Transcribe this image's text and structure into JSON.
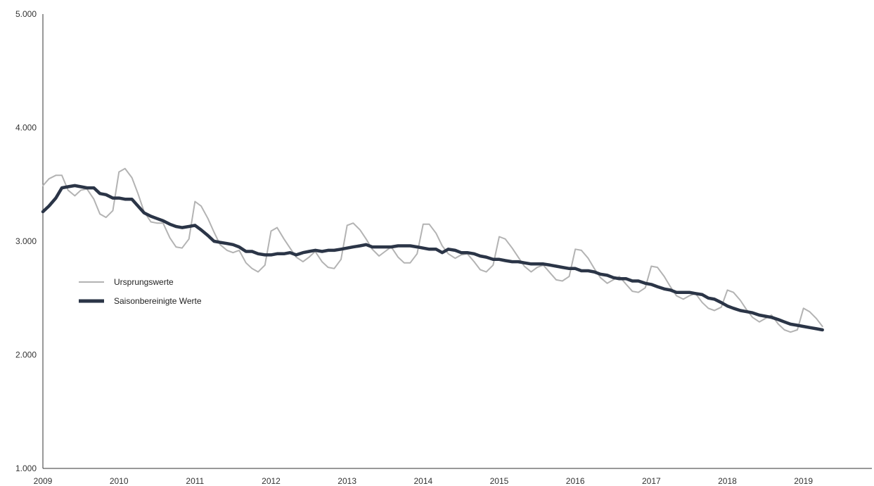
{
  "chart_data": {
    "type": "line",
    "title": "",
    "xlabel": "",
    "ylabel": "",
    "xlim": [
      2009,
      2019.9
    ],
    "ylim": [
      1000,
      5000
    ],
    "y_ticks": [
      {
        "value": 1000,
        "label": "1.000"
      },
      {
        "value": 2000,
        "label": "2.000"
      },
      {
        "value": 3000,
        "label": "3.000"
      },
      {
        "value": 4000,
        "label": "4.000"
      },
      {
        "value": 5000,
        "label": "5.000"
      }
    ],
    "x_ticks": [
      {
        "value": 2009,
        "label": "2009"
      },
      {
        "value": 2010,
        "label": "2010"
      },
      {
        "value": 2011,
        "label": "2011"
      },
      {
        "value": 2012,
        "label": "2012"
      },
      {
        "value": 2013,
        "label": "2013"
      },
      {
        "value": 2014,
        "label": "2014"
      },
      {
        "value": 2015,
        "label": "2015"
      },
      {
        "value": 2016,
        "label": "2016"
      },
      {
        "value": 2017,
        "label": "2017"
      },
      {
        "value": 2018,
        "label": "2018"
      },
      {
        "value": 2019,
        "label": "2019"
      }
    ],
    "grid": false,
    "legend_position": "left-middle",
    "colors": {
      "original": "#b3b3b3",
      "adjusted": "#2b3547",
      "axis": "#333333"
    },
    "series": [
      {
        "name": "Ursprungswerte",
        "points": [
          [
            2009.0,
            3490
          ],
          [
            2009.08,
            3550
          ],
          [
            2009.17,
            3580
          ],
          [
            2009.25,
            3580
          ],
          [
            2009.33,
            3450
          ],
          [
            2009.42,
            3400
          ],
          [
            2009.5,
            3450
          ],
          [
            2009.58,
            3460
          ],
          [
            2009.67,
            3370
          ],
          [
            2009.75,
            3240
          ],
          [
            2009.83,
            3210
          ],
          [
            2009.92,
            3270
          ],
          [
            2010.0,
            3610
          ],
          [
            2010.08,
            3640
          ],
          [
            2010.17,
            3560
          ],
          [
            2010.25,
            3420
          ],
          [
            2010.33,
            3260
          ],
          [
            2010.42,
            3170
          ],
          [
            2010.5,
            3160
          ],
          [
            2010.58,
            3160
          ],
          [
            2010.67,
            3030
          ],
          [
            2010.75,
            2950
          ],
          [
            2010.83,
            2940
          ],
          [
            2010.92,
            3020
          ],
          [
            2011.0,
            3350
          ],
          [
            2011.08,
            3310
          ],
          [
            2011.17,
            3200
          ],
          [
            2011.25,
            3080
          ],
          [
            2011.33,
            2970
          ],
          [
            2011.42,
            2920
          ],
          [
            2011.5,
            2900
          ],
          [
            2011.58,
            2920
          ],
          [
            2011.67,
            2810
          ],
          [
            2011.75,
            2760
          ],
          [
            2011.83,
            2730
          ],
          [
            2011.92,
            2790
          ],
          [
            2012.0,
            3090
          ],
          [
            2012.08,
            3120
          ],
          [
            2012.17,
            3020
          ],
          [
            2012.25,
            2940
          ],
          [
            2012.33,
            2860
          ],
          [
            2012.42,
            2820
          ],
          [
            2012.5,
            2860
          ],
          [
            2012.58,
            2910
          ],
          [
            2012.67,
            2820
          ],
          [
            2012.75,
            2770
          ],
          [
            2012.83,
            2760
          ],
          [
            2012.92,
            2840
          ],
          [
            2013.0,
            3140
          ],
          [
            2013.08,
            3160
          ],
          [
            2013.17,
            3100
          ],
          [
            2013.25,
            3020
          ],
          [
            2013.33,
            2930
          ],
          [
            2013.42,
            2870
          ],
          [
            2013.5,
            2910
          ],
          [
            2013.58,
            2950
          ],
          [
            2013.67,
            2860
          ],
          [
            2013.75,
            2810
          ],
          [
            2013.83,
            2810
          ],
          [
            2013.92,
            2890
          ],
          [
            2014.0,
            3150
          ],
          [
            2014.08,
            3150
          ],
          [
            2014.17,
            3070
          ],
          [
            2014.25,
            2960
          ],
          [
            2014.33,
            2890
          ],
          [
            2014.42,
            2850
          ],
          [
            2014.5,
            2880
          ],
          [
            2014.58,
            2890
          ],
          [
            2014.67,
            2820
          ],
          [
            2014.75,
            2750
          ],
          [
            2014.83,
            2730
          ],
          [
            2014.92,
            2790
          ],
          [
            2015.0,
            3040
          ],
          [
            2015.08,
            3020
          ],
          [
            2015.17,
            2940
          ],
          [
            2015.25,
            2860
          ],
          [
            2015.33,
            2780
          ],
          [
            2015.42,
            2730
          ],
          [
            2015.5,
            2770
          ],
          [
            2015.58,
            2790
          ],
          [
            2015.67,
            2720
          ],
          [
            2015.75,
            2660
          ],
          [
            2015.83,
            2650
          ],
          [
            2015.92,
            2690
          ],
          [
            2016.0,
            2930
          ],
          [
            2016.08,
            2920
          ],
          [
            2016.17,
            2850
          ],
          [
            2016.25,
            2760
          ],
          [
            2016.33,
            2680
          ],
          [
            2016.42,
            2630
          ],
          [
            2016.5,
            2660
          ],
          [
            2016.58,
            2690
          ],
          [
            2016.67,
            2620
          ],
          [
            2016.75,
            2560
          ],
          [
            2016.83,
            2550
          ],
          [
            2016.92,
            2590
          ],
          [
            2017.0,
            2780
          ],
          [
            2017.08,
            2770
          ],
          [
            2017.17,
            2690
          ],
          [
            2017.25,
            2600
          ],
          [
            2017.33,
            2520
          ],
          [
            2017.42,
            2490
          ],
          [
            2017.5,
            2520
          ],
          [
            2017.58,
            2540
          ],
          [
            2017.67,
            2460
          ],
          [
            2017.75,
            2410
          ],
          [
            2017.83,
            2390
          ],
          [
            2017.92,
            2420
          ],
          [
            2018.0,
            2570
          ],
          [
            2018.08,
            2550
          ],
          [
            2018.17,
            2480
          ],
          [
            2018.25,
            2400
          ],
          [
            2018.33,
            2330
          ],
          [
            2018.42,
            2290
          ],
          [
            2018.5,
            2320
          ],
          [
            2018.58,
            2350
          ],
          [
            2018.67,
            2270
          ],
          [
            2018.75,
            2220
          ],
          [
            2018.83,
            2200
          ],
          [
            2018.92,
            2220
          ],
          [
            2019.0,
            2410
          ],
          [
            2019.08,
            2380
          ],
          [
            2019.17,
            2320
          ],
          [
            2019.25,
            2250
          ]
        ]
      },
      {
        "name": "Saisonbereinigte Werte",
        "points": [
          [
            2009.0,
            3260
          ],
          [
            2009.08,
            3310
          ],
          [
            2009.17,
            3380
          ],
          [
            2009.25,
            3470
          ],
          [
            2009.33,
            3480
          ],
          [
            2009.42,
            3490
          ],
          [
            2009.5,
            3480
          ],
          [
            2009.58,
            3470
          ],
          [
            2009.67,
            3470
          ],
          [
            2009.75,
            3420
          ],
          [
            2009.83,
            3410
          ],
          [
            2009.92,
            3380
          ],
          [
            2010.0,
            3380
          ],
          [
            2010.08,
            3370
          ],
          [
            2010.17,
            3370
          ],
          [
            2010.25,
            3310
          ],
          [
            2010.33,
            3250
          ],
          [
            2010.42,
            3220
          ],
          [
            2010.5,
            3200
          ],
          [
            2010.58,
            3180
          ],
          [
            2010.67,
            3150
          ],
          [
            2010.75,
            3130
          ],
          [
            2010.83,
            3120
          ],
          [
            2010.92,
            3130
          ],
          [
            2011.0,
            3140
          ],
          [
            2011.08,
            3100
          ],
          [
            2011.17,
            3050
          ],
          [
            2011.25,
            3000
          ],
          [
            2011.33,
            2990
          ],
          [
            2011.42,
            2980
          ],
          [
            2011.5,
            2970
          ],
          [
            2011.58,
            2950
          ],
          [
            2011.67,
            2910
          ],
          [
            2011.75,
            2910
          ],
          [
            2011.83,
            2890
          ],
          [
            2011.92,
            2880
          ],
          [
            2012.0,
            2880
          ],
          [
            2012.08,
            2890
          ],
          [
            2012.17,
            2890
          ],
          [
            2012.25,
            2900
          ],
          [
            2012.33,
            2880
          ],
          [
            2012.42,
            2900
          ],
          [
            2012.5,
            2910
          ],
          [
            2012.58,
            2920
          ],
          [
            2012.67,
            2910
          ],
          [
            2012.75,
            2920
          ],
          [
            2012.83,
            2920
          ],
          [
            2012.92,
            2930
          ],
          [
            2013.0,
            2940
          ],
          [
            2013.08,
            2950
          ],
          [
            2013.17,
            2960
          ],
          [
            2013.25,
            2970
          ],
          [
            2013.33,
            2950
          ],
          [
            2013.42,
            2950
          ],
          [
            2013.5,
            2950
          ],
          [
            2013.58,
            2950
          ],
          [
            2013.67,
            2960
          ],
          [
            2013.75,
            2960
          ],
          [
            2013.83,
            2960
          ],
          [
            2013.92,
            2950
          ],
          [
            2014.0,
            2940
          ],
          [
            2014.08,
            2930
          ],
          [
            2014.17,
            2930
          ],
          [
            2014.25,
            2900
          ],
          [
            2014.33,
            2930
          ],
          [
            2014.42,
            2920
          ],
          [
            2014.5,
            2900
          ],
          [
            2014.58,
            2900
          ],
          [
            2014.67,
            2890
          ],
          [
            2014.75,
            2870
          ],
          [
            2014.83,
            2860
          ],
          [
            2014.92,
            2840
          ],
          [
            2015.0,
            2840
          ],
          [
            2015.08,
            2830
          ],
          [
            2015.17,
            2820
          ],
          [
            2015.25,
            2820
          ],
          [
            2015.33,
            2810
          ],
          [
            2015.42,
            2800
          ],
          [
            2015.5,
            2800
          ],
          [
            2015.58,
            2800
          ],
          [
            2015.67,
            2790
          ],
          [
            2015.75,
            2780
          ],
          [
            2015.83,
            2770
          ],
          [
            2015.92,
            2760
          ],
          [
            2016.0,
            2760
          ],
          [
            2016.08,
            2740
          ],
          [
            2016.17,
            2740
          ],
          [
            2016.25,
            2730
          ],
          [
            2016.33,
            2710
          ],
          [
            2016.42,
            2700
          ],
          [
            2016.5,
            2680
          ],
          [
            2016.58,
            2670
          ],
          [
            2016.67,
            2670
          ],
          [
            2016.75,
            2650
          ],
          [
            2016.83,
            2650
          ],
          [
            2016.92,
            2630
          ],
          [
            2017.0,
            2620
          ],
          [
            2017.08,
            2600
          ],
          [
            2017.17,
            2580
          ],
          [
            2017.25,
            2570
          ],
          [
            2017.33,
            2550
          ],
          [
            2017.42,
            2550
          ],
          [
            2017.5,
            2550
          ],
          [
            2017.58,
            2540
          ],
          [
            2017.67,
            2530
          ],
          [
            2017.75,
            2500
          ],
          [
            2017.83,
            2490
          ],
          [
            2017.92,
            2460
          ],
          [
            2018.0,
            2430
          ],
          [
            2018.08,
            2410
          ],
          [
            2018.17,
            2390
          ],
          [
            2018.25,
            2380
          ],
          [
            2018.33,
            2370
          ],
          [
            2018.42,
            2350
          ],
          [
            2018.5,
            2340
          ],
          [
            2018.58,
            2330
          ],
          [
            2018.67,
            2310
          ],
          [
            2018.75,
            2290
          ],
          [
            2018.83,
            2270
          ],
          [
            2018.92,
            2260
          ],
          [
            2019.0,
            2250
          ],
          [
            2019.08,
            2240
          ],
          [
            2019.17,
            2230
          ],
          [
            2019.25,
            2220
          ]
        ]
      }
    ]
  }
}
